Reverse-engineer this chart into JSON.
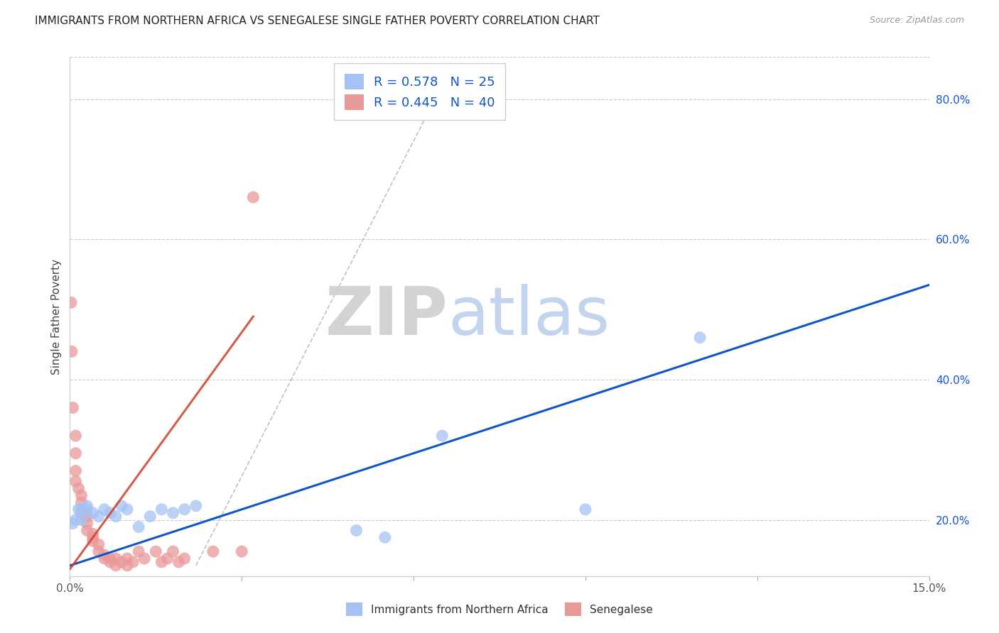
{
  "title": "IMMIGRANTS FROM NORTHERN AFRICA VS SENEGALESE SINGLE FATHER POVERTY CORRELATION CHART",
  "source": "Source: ZipAtlas.com",
  "ylabel": "Single Father Poverty",
  "x_label_blue": "Immigrants from Northern Africa",
  "x_label_pink": "Senegalese",
  "xlim": [
    0.0,
    0.15
  ],
  "ylim": [
    0.12,
    0.86
  ],
  "yticks_right": [
    0.2,
    0.4,
    0.6,
    0.8
  ],
  "ytick_right_labels": [
    "20.0%",
    "40.0%",
    "60.0%",
    "80.0%"
  ],
  "legend_r_blue": "R = 0.578",
  "legend_n_blue": "N = 25",
  "legend_r_pink": "R = 0.445",
  "legend_n_pink": "N = 40",
  "blue_color": "#a4c2f4",
  "pink_color": "#ea9999",
  "blue_line_color": "#1155cc",
  "pink_line_color": "#cc4125",
  "background_color": "#ffffff",
  "grid_color": "#cccccc",
  "watermark_zip": "ZIP",
  "watermark_atlas": "atlas",
  "blue_scatter_x": [
    0.0005,
    0.001,
    0.0015,
    0.002,
    0.002,
    0.003,
    0.003,
    0.004,
    0.005,
    0.006,
    0.007,
    0.008,
    0.009,
    0.01,
    0.012,
    0.014,
    0.016,
    0.018,
    0.02,
    0.022,
    0.05,
    0.055,
    0.065,
    0.09,
    0.11
  ],
  "blue_scatter_y": [
    0.195,
    0.2,
    0.215,
    0.215,
    0.2,
    0.215,
    0.22,
    0.21,
    0.205,
    0.215,
    0.21,
    0.205,
    0.22,
    0.215,
    0.19,
    0.205,
    0.215,
    0.21,
    0.215,
    0.22,
    0.185,
    0.175,
    0.32,
    0.215,
    0.46
  ],
  "pink_scatter_x": [
    0.0002,
    0.0003,
    0.0005,
    0.001,
    0.001,
    0.001,
    0.001,
    0.0015,
    0.002,
    0.002,
    0.002,
    0.003,
    0.003,
    0.003,
    0.004,
    0.004,
    0.004,
    0.005,
    0.005,
    0.006,
    0.006,
    0.007,
    0.007,
    0.008,
    0.008,
    0.009,
    0.01,
    0.01,
    0.011,
    0.012,
    0.013,
    0.015,
    0.016,
    0.017,
    0.018,
    0.019,
    0.02,
    0.025,
    0.03,
    0.032
  ],
  "pink_scatter_y": [
    0.51,
    0.44,
    0.36,
    0.32,
    0.295,
    0.27,
    0.255,
    0.245,
    0.235,
    0.225,
    0.21,
    0.205,
    0.195,
    0.185,
    0.18,
    0.175,
    0.17,
    0.165,
    0.155,
    0.15,
    0.145,
    0.145,
    0.14,
    0.145,
    0.135,
    0.14,
    0.145,
    0.135,
    0.14,
    0.155,
    0.145,
    0.155,
    0.14,
    0.145,
    0.155,
    0.14,
    0.145,
    0.155,
    0.155,
    0.66
  ],
  "blue_line_x": [
    0.0,
    0.15
  ],
  "blue_line_y": [
    0.135,
    0.535
  ],
  "pink_line_x": [
    0.0,
    0.032
  ],
  "pink_line_y": [
    0.13,
    0.49
  ],
  "dash_line_x": [
    0.022,
    0.065
  ],
  "dash_line_y": [
    0.135,
    0.82
  ]
}
